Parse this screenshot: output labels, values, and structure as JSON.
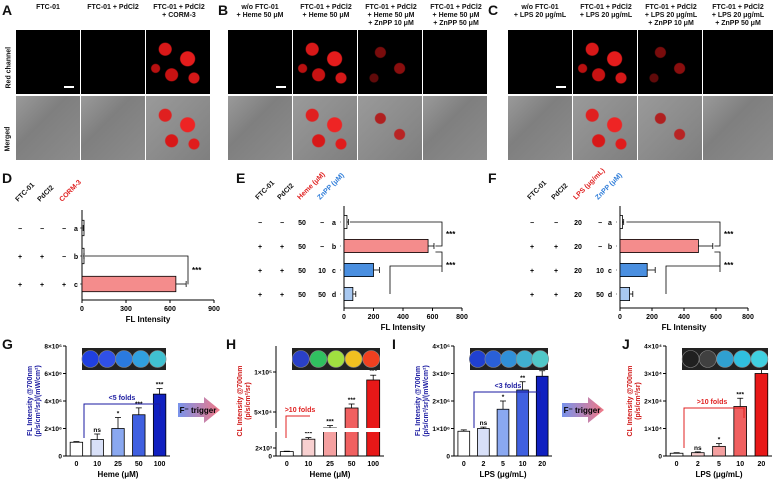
{
  "panels": {
    "A": {
      "label": "A",
      "headers": [
        "FTC-01",
        "FTC-01 + PdCl2",
        "FTC-01 + PdCl2\n+ CORM-3"
      ]
    },
    "B": {
      "label": "B",
      "headers": [
        "w/o FTC-01\n+ Heme 50 μM",
        "FTC-01 + PdCl2\n+ Heme 50 μM",
        "FTC-01 + PdCl2\n+ Heme 50 μM\n+ ZnPP 10 μM",
        "FTC-01 + PdCl2\n+ Heme 50 μM\n+ ZnPP 50 μM"
      ]
    },
    "C": {
      "label": "C",
      "headers": [
        "w/o FTC-01\n+ LPS 20 μg/mL",
        "FTC-01 + PdCl2\n+ LPS 20 μg/mL",
        "FTC-01 + PdCl2\n+ LPS 20 μg/mL\n+ ZnPP 10 μM",
        "FTC-01 + PdCl2\n+ LPS 20 μg/mL\n+ ZnPP 50 μM"
      ]
    },
    "row_labels": [
      "Red channel",
      "Merged"
    ],
    "D": {
      "label": "D",
      "cols": [
        "FTC-01",
        "PdCl2",
        "CORM-3"
      ],
      "rows": [
        [
          "−",
          "−",
          "−",
          "a"
        ],
        [
          "+",
          "+",
          "−",
          "b"
        ],
        [
          "+",
          "+",
          "+",
          "c"
        ]
      ]
    },
    "E": {
      "label": "E",
      "cols": [
        "FTC-01",
        "PdCl2",
        "Heme (μM)",
        "ZnPP (μM)"
      ],
      "rows": [
        [
          "−",
          "−",
          "50",
          "−",
          "a"
        ],
        [
          "+",
          "+",
          "50",
          "−",
          "b"
        ],
        [
          "+",
          "+",
          "50",
          "10",
          "c"
        ],
        [
          "+",
          "+",
          "50",
          "50",
          "d"
        ]
      ]
    },
    "F": {
      "label": "F",
      "cols": [
        "FTC-01",
        "PdCl2",
        "LPS (μg/mL)",
        "ZnPP (μM)"
      ],
      "rows": [
        [
          "−",
          "−",
          "20",
          "−",
          "a"
        ],
        [
          "+",
          "+",
          "20",
          "−",
          "b"
        ],
        [
          "+",
          "+",
          "20",
          "10",
          "c"
        ],
        [
          "+",
          "+",
          "20",
          "50",
          "d"
        ]
      ]
    },
    "G": {
      "label": "G",
      "ytitle": "FL Intensity @700nm\n(p/s/cm²/sr)/(mW/cm²)",
      "xlabel": "Heme (μM)",
      "annot": "<5 folds"
    },
    "H": {
      "label": "H",
      "ytitle": "CL Intensity @700nm\n(p/s/cm²/sr)",
      "xlabel": "Heme (μM)",
      "annot": ">10 folds"
    },
    "I": {
      "label": "I",
      "ytitle": "FL Intensity @700nm\n(p/s/cm²/sr)/(mW/cm²)",
      "xlabel": "LPS (μg/mL)",
      "annot": "<3 folds"
    },
    "J": {
      "label": "J",
      "ytitle": "CL Intensity @700nm\n(p/s/cm²/sr)",
      "xlabel": "LPS (μg/mL)",
      "annot": ">10 folds"
    },
    "trigger": "F⁻ trigger"
  },
  "chart_data": [
    {
      "id": "D",
      "type": "bar",
      "orientation": "horizontal",
      "categories": [
        "a",
        "b",
        "c"
      ],
      "values": [
        5,
        8,
        640
      ],
      "errors": [
        3,
        5,
        70
      ],
      "xlabel": "FL Intensity",
      "xlim": [
        0,
        900
      ],
      "xticks": [
        0,
        300,
        600,
        900
      ],
      "sig": "***",
      "colors": [
        "#ffffff",
        "#ffffff",
        "#f48c8c"
      ]
    },
    {
      "id": "E",
      "type": "bar",
      "orientation": "horizontal",
      "categories": [
        "a",
        "b",
        "c",
        "d"
      ],
      "values": [
        20,
        570,
        200,
        60
      ],
      "errors": [
        10,
        40,
        40,
        20
      ],
      "xlabel": "FL Intensity",
      "xlim": [
        0,
        800
      ],
      "xticks": [
        0,
        200,
        400,
        600,
        800
      ],
      "sig": [
        "***",
        "***"
      ],
      "colors": [
        "#ffffff",
        "#f48c8c",
        "#4a8fe0",
        "#a8c8f0"
      ]
    },
    {
      "id": "F",
      "type": "bar",
      "orientation": "horizontal",
      "categories": [
        "a",
        "b",
        "c",
        "d"
      ],
      "values": [
        15,
        490,
        170,
        60
      ],
      "errors": [
        8,
        90,
        50,
        20
      ],
      "xlabel": "FL Intensity",
      "xlim": [
        0,
        800
      ],
      "xticks": [
        0,
        200,
        400,
        600,
        800
      ],
      "sig": [
        "***",
        "***"
      ],
      "colors": [
        "#ffffff",
        "#f48c8c",
        "#4a8fe0",
        "#a8c8f0"
      ]
    },
    {
      "id": "G",
      "type": "bar",
      "categories": [
        "0",
        "10",
        "25",
        "50",
        "100"
      ],
      "values": [
        1000000.0,
        1200000.0,
        2000000.0,
        3000000.0,
        4500000.0
      ],
      "errors": [
        50000.0,
        400000.0,
        800000.0,
        500000.0,
        400000.0
      ],
      "sig": [
        "",
        "ns",
        "*",
        "***",
        "***"
      ],
      "ylim": [
        0,
        8000000.0
      ],
      "yticks": [
        "0",
        "2×10⁶",
        "4×10⁶",
        "6×10⁶",
        "8×10⁶"
      ],
      "xlabel": "Heme (μM)"
    },
    {
      "id": "H",
      "type": "bar",
      "categories": [
        "0",
        "10",
        "25",
        "50",
        "100"
      ],
      "values": [
        1100.0,
        16000.0,
        30000.0,
        55000.0,
        90000.0
      ],
      "errors": [
        100,
        2000,
        3000,
        5000,
        6000
      ],
      "sig": [
        "",
        "***",
        "***",
        "***",
        "***"
      ],
      "yticks": [
        "0",
        "2×10³",
        "5×10⁴",
        "1×10⁵"
      ],
      "xlabel": "Heme (μM)"
    },
    {
      "id": "I",
      "type": "bar",
      "categories": [
        "0",
        "2",
        "5",
        "10",
        "20"
      ],
      "values": [
        900000.0,
        1000000.0,
        1700000.0,
        2400000.0,
        2900000.0
      ],
      "errors": [
        50000.0,
        50000.0,
        300000.0,
        300000.0,
        200000.0
      ],
      "sig": [
        "",
        "ns",
        "*",
        "**",
        "**"
      ],
      "ylim": [
        0,
        4000000.0
      ],
      "yticks": [
        "0",
        "1×10⁶",
        "2×10⁶",
        "3×10⁶",
        "4×10⁶"
      ],
      "xlabel": "LPS (μg/mL)"
    },
    {
      "id": "J",
      "type": "bar",
      "categories": [
        "0",
        "2",
        "5",
        "10",
        "20"
      ],
      "values": [
        1000,
        1200,
        3500,
        18000,
        30000
      ],
      "errors": [
        200,
        300,
        1000,
        3000,
        1500
      ],
      "sig": [
        "",
        "ns",
        "*",
        "***",
        "***"
      ],
      "ylim": [
        0,
        40000
      ],
      "yticks": [
        "0",
        "1×10⁴",
        "2×10⁴",
        "3×10⁴",
        "4×10⁴"
      ],
      "xlabel": "LPS (μg/mL)"
    }
  ]
}
